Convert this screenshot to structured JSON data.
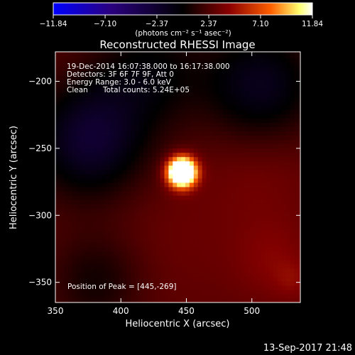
{
  "chart_data": {
    "type": "heatmap",
    "title": "Reconstructed RHESSI Image",
    "xlabel": "Heliocentric X (arcsec)",
    "ylabel": "Heliocentric Y (arcsec)",
    "xlim": [
      350,
      537
    ],
    "ylim": [
      -365,
      -178
    ],
    "x_ticks": [
      350,
      400,
      450,
      500
    ],
    "y_ticks": [
      -200,
      -250,
      -300,
      -350
    ],
    "x_tick_labels": [
      "350",
      "400",
      "450",
      "500"
    ],
    "y_tick_labels": [
      "−200",
      "−250",
      "−300",
      "−350"
    ],
    "colorbar": {
      "min": -11.84,
      "max": 11.84,
      "tick_values": [
        -11.84,
        -7.1,
        -2.37,
        2.37,
        7.1,
        11.84
      ],
      "tick_labels": [
        "−11.84",
        "−7.10",
        "−2.37",
        "2.37",
        "7.10",
        "11.84"
      ],
      "units_label": "(photons cm⁻² s⁻¹ asec⁻²)",
      "colormap": [
        "#0000ff",
        "#2a0080",
        "#000000",
        "#800000",
        "#ff6000",
        "#ffff80",
        "#ffffff"
      ]
    },
    "annotations": {
      "time_range": "19-Dec-2014 16:07:38.000 to 16:17:38.000",
      "detectors": "Detectors: 3F 6F 7F 9F, Att 0",
      "energy": "Energy Range: 3.0 - 6.0 keV",
      "method": "Clean",
      "counts": "Total counts: 5.24E+05",
      "peak": "Position of Peak = [445,-269]"
    },
    "peak_position": [
      445,
      -269
    ],
    "timestamp": "13-Sep-2017 21:48"
  }
}
